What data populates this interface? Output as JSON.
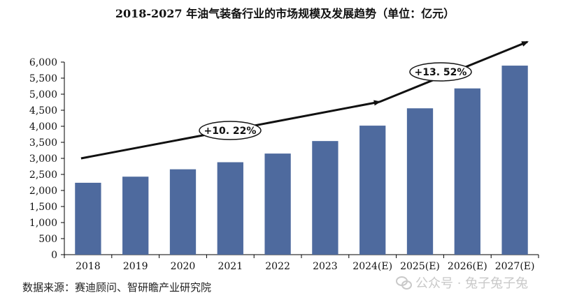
{
  "title": "2018-2027 年油气装备行业的市场规模及发展趋势（单位：亿元）",
  "source": "数据来源：赛迪顾问、智研瞻产业研究院",
  "watermark": "公众号 · 兔子兔子兔",
  "colors": {
    "bar": "#4E6A9E",
    "axis": "#000000",
    "arrow": "#111111"
  },
  "chart_data": {
    "type": "bar",
    "title": "2018-2027 年油气装备行业的市场规模及发展趋势（单位：亿元）",
    "categories": [
      "2018",
      "2019",
      "2020",
      "2021",
      "2022",
      "2023",
      "2024(E)",
      "2025(E)",
      "2026(E)",
      "2027(E)"
    ],
    "values": [
      2240,
      2430,
      2660,
      2880,
      3150,
      3540,
      4020,
      4560,
      5180,
      5890
    ],
    "ylim": [
      0,
      6000
    ],
    "yticks": [
      0,
      500,
      1000,
      1500,
      2000,
      2500,
      3000,
      3500,
      4000,
      4500,
      5000,
      5500,
      6000
    ],
    "ytick_labels": [
      "0",
      "500",
      "1,000",
      "1,500",
      "2,000",
      "2,500",
      "3,000",
      "3,500",
      "4,000",
      "4,500",
      "5,000",
      "5,500",
      "6,000"
    ],
    "grid": false,
    "legend": "none",
    "annotations": [
      {
        "text": "+10. 22%",
        "segment": "2018-2024(E)"
      },
      {
        "text": "+13. 52%",
        "segment": "2024(E)-2027(E)"
      }
    ]
  }
}
